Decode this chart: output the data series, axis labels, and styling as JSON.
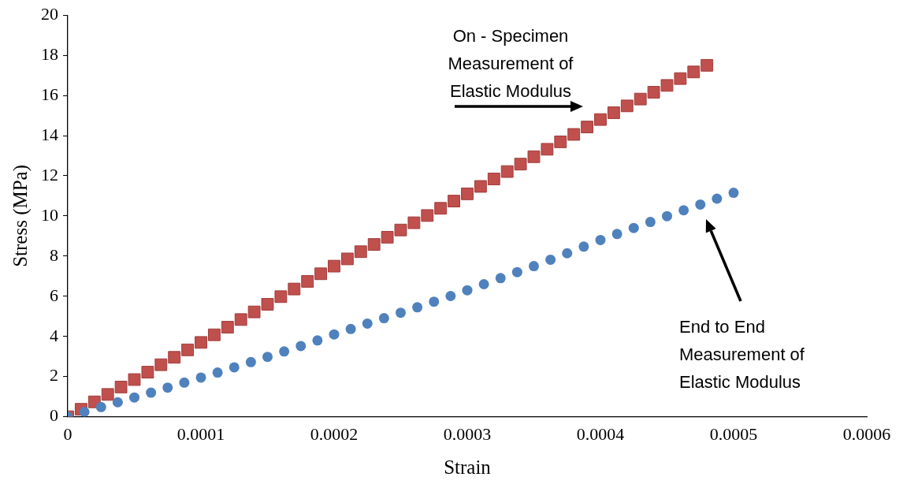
{
  "chart_data": {
    "type": "scatter",
    "xlabel": "Strain",
    "ylabel": "Stress (MPa)",
    "xlim": [
      0,
      0.0006
    ],
    "xticks": [
      0,
      0.0001,
      0.0002,
      0.0003,
      0.0004,
      0.0005,
      0.0006
    ],
    "ylim": [
      0,
      20
    ],
    "yticks": [
      0,
      2,
      4,
      6,
      8,
      10,
      12,
      14,
      16,
      18,
      20
    ],
    "grid": false,
    "legend": false,
    "series": [
      {
        "color": "#4f81bd",
        "marker": "circle",
        "x": [
          0,
          1.25e-05,
          2.5e-05,
          3.75e-05,
          5e-05,
          6.25e-05,
          7.5e-05,
          8.75e-05,
          0.0001,
          0.0001125,
          0.000125,
          0.0001375,
          0.00015,
          0.0001625,
          0.000175,
          0.0001875,
          0.0002,
          0.0002125,
          0.000225,
          0.0002375,
          0.00025,
          0.0002625,
          0.000275,
          0.0002875,
          0.0003,
          0.0003125,
          0.000325,
          0.0003375,
          0.00035,
          0.0003625,
          0.000375,
          0.0003875,
          0.0004,
          0.0004125,
          0.000425,
          0.0004375,
          0.00045,
          0.0004625,
          0.000475,
          0.0004875,
          0.0005
        ],
        "values": [
          0,
          0.24,
          0.48,
          0.72,
          0.96,
          1.2,
          1.45,
          1.7,
          1.95,
          2.2,
          2.46,
          2.72,
          2.98,
          3.25,
          3.52,
          3.8,
          4.1,
          4.37,
          4.64,
          4.91,
          5.18,
          5.45,
          5.73,
          6.01,
          6.3,
          6.6,
          6.9,
          7.2,
          7.5,
          7.82,
          8.14,
          8.47,
          8.8,
          9.1,
          9.4,
          9.7,
          9.99,
          10.28,
          10.57,
          10.86,
          11.15
        ]
      },
      {
        "color": "#c0504d",
        "marker": "square",
        "x": [
          0,
          1e-05,
          2e-05,
          3e-05,
          4e-05,
          5e-05,
          6e-05,
          7e-05,
          8e-05,
          9e-05,
          0.0001,
          0.00011,
          0.00012,
          0.00013,
          0.00014,
          0.00015,
          0.00016,
          0.00017,
          0.00018,
          0.00019,
          0.0002,
          0.00021,
          0.00022,
          0.00023,
          0.00024,
          0.00025,
          0.00026,
          0.00027,
          0.00028,
          0.00029,
          0.0003,
          0.00031,
          0.00032,
          0.00033,
          0.00034,
          0.00035,
          0.00036,
          0.00037,
          0.00038,
          0.00039,
          0.0004,
          0.00041,
          0.00042,
          0.00043,
          0.00044,
          0.00045,
          0.00046,
          0.00047,
          0.00048
        ],
        "values": [
          0,
          0.37,
          0.74,
          1.11,
          1.48,
          1.85,
          2.22,
          2.59,
          2.96,
          3.33,
          3.7,
          4.08,
          4.46,
          4.84,
          5.22,
          5.6,
          5.98,
          6.36,
          6.74,
          7.12,
          7.5,
          7.86,
          8.22,
          8.58,
          8.94,
          9.3,
          9.66,
          10.02,
          10.38,
          10.74,
          11.1,
          11.47,
          11.84,
          12.21,
          12.58,
          12.95,
          13.32,
          13.69,
          14.06,
          14.43,
          14.8,
          15.14,
          15.48,
          15.82,
          16.16,
          16.5,
          16.84,
          17.17,
          17.5
        ]
      }
    ],
    "annotations": [
      "On - Specimen Measurement of Elastic Modulus",
      "End to End Measurement of Elastic Modulus"
    ]
  }
}
